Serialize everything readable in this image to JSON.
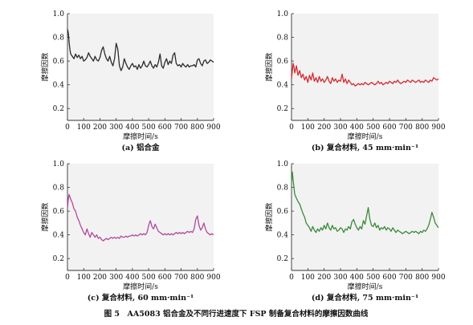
{
  "figure_caption": "图 5　AA5083 铝合金及不同行进速度下 FSP 制备复合材料的摩擦因数曲线",
  "chart_data": [
    {
      "type": "line",
      "panel_caption": "(a) 铝合金",
      "xlabel": "摩擦时间/s",
      "ylabel": "摩擦因数",
      "xlim": [
        0,
        900
      ],
      "ylim": [
        0.1,
        1.0
      ],
      "x_ticks": [
        0,
        100,
        200,
        300,
        400,
        500,
        600,
        700,
        800,
        900
      ],
      "y_ticks": [
        0.2,
        0.4,
        0.6,
        0.8,
        1.0
      ],
      "grid": false,
      "series": [
        {
          "color": "#2b2b2b",
          "x": [
            0,
            5,
            10,
            15,
            20,
            30,
            40,
            50,
            60,
            70,
            80,
            90,
            100,
            110,
            120,
            130,
            140,
            150,
            160,
            170,
            180,
            190,
            200,
            210,
            220,
            230,
            240,
            250,
            260,
            270,
            280,
            290,
            300,
            310,
            320,
            330,
            340,
            350,
            360,
            370,
            380,
            390,
            400,
            410,
            420,
            430,
            440,
            450,
            460,
            470,
            480,
            490,
            500,
            510,
            520,
            530,
            540,
            550,
            560,
            570,
            580,
            590,
            600,
            610,
            620,
            630,
            640,
            650,
            660,
            670,
            680,
            690,
            700,
            710,
            720,
            730,
            740,
            750,
            760,
            770,
            780,
            790,
            800,
            810,
            820,
            830,
            840,
            850,
            860,
            870,
            880,
            890,
            900
          ],
          "y": [
            0.87,
            0.84,
            0.76,
            0.7,
            0.66,
            0.64,
            0.62,
            0.66,
            0.63,
            0.65,
            0.62,
            0.64,
            0.6,
            0.61,
            0.63,
            0.67,
            0.64,
            0.62,
            0.6,
            0.64,
            0.61,
            0.6,
            0.63,
            0.69,
            0.72,
            0.66,
            0.62,
            0.6,
            0.64,
            0.59,
            0.56,
            0.62,
            0.75,
            0.7,
            0.56,
            0.52,
            0.55,
            0.62,
            0.58,
            0.55,
            0.53,
            0.56,
            0.58,
            0.55,
            0.56,
            0.53,
            0.57,
            0.54,
            0.56,
            0.6,
            0.56,
            0.55,
            0.57,
            0.6,
            0.56,
            0.54,
            0.57,
            0.55,
            0.59,
            0.66,
            0.56,
            0.54,
            0.59,
            0.62,
            0.57,
            0.6,
            0.58,
            0.65,
            0.67,
            0.58,
            0.56,
            0.57,
            0.55,
            0.58,
            0.56,
            0.55,
            0.57,
            0.55,
            0.56,
            0.56,
            0.57,
            0.55,
            0.61,
            0.62,
            0.58,
            0.56,
            0.6,
            0.61,
            0.58,
            0.59,
            0.61,
            0.6,
            0.59
          ]
        }
      ]
    },
    {
      "type": "line",
      "panel_caption": "(b) 复合材料, 45 mm·min⁻¹",
      "xlabel": "摩擦时间/s",
      "ylabel": "摩擦因数",
      "xlim": [
        0,
        900
      ],
      "ylim": [
        0.1,
        1.0
      ],
      "x_ticks": [
        0,
        100,
        200,
        300,
        400,
        500,
        600,
        700,
        800,
        900
      ],
      "y_ticks": [
        0.2,
        0.4,
        0.6,
        0.8,
        1.0
      ],
      "grid": false,
      "series": [
        {
          "color": "#d42a33",
          "x": [
            0,
            5,
            10,
            15,
            20,
            30,
            40,
            50,
            60,
            70,
            80,
            90,
            100,
            110,
            120,
            130,
            140,
            150,
            160,
            170,
            180,
            190,
            200,
            210,
            220,
            230,
            240,
            250,
            260,
            270,
            280,
            290,
            300,
            310,
            320,
            330,
            340,
            350,
            360,
            370,
            380,
            390,
            400,
            410,
            420,
            430,
            440,
            450,
            460,
            470,
            480,
            490,
            500,
            510,
            520,
            530,
            540,
            550,
            560,
            570,
            580,
            590,
            600,
            610,
            620,
            630,
            640,
            650,
            660,
            670,
            680,
            690,
            700,
            710,
            720,
            730,
            740,
            750,
            760,
            770,
            780,
            790,
            800,
            810,
            820,
            830,
            840,
            850,
            860,
            870,
            880,
            890,
            900
          ],
          "y": [
            0.45,
            0.52,
            0.58,
            0.55,
            0.5,
            0.56,
            0.48,
            0.52,
            0.46,
            0.49,
            0.44,
            0.47,
            0.42,
            0.48,
            0.44,
            0.5,
            0.43,
            0.46,
            0.42,
            0.47,
            0.43,
            0.45,
            0.42,
            0.44,
            0.47,
            0.43,
            0.41,
            0.46,
            0.43,
            0.45,
            0.42,
            0.44,
            0.43,
            0.49,
            0.42,
            0.45,
            0.41,
            0.44,
            0.42,
            0.4,
            0.41,
            0.39,
            0.4,
            0.41,
            0.4,
            0.41,
            0.4,
            0.42,
            0.41,
            0.4,
            0.41,
            0.42,
            0.41,
            0.4,
            0.41,
            0.43,
            0.41,
            0.42,
            0.4,
            0.41,
            0.42,
            0.41,
            0.43,
            0.42,
            0.41,
            0.43,
            0.42,
            0.44,
            0.42,
            0.41,
            0.42,
            0.43,
            0.42,
            0.44,
            0.43,
            0.42,
            0.44,
            0.43,
            0.42,
            0.43,
            0.44,
            0.42,
            0.43,
            0.42,
            0.44,
            0.43,
            0.42,
            0.44,
            0.43,
            0.46,
            0.45,
            0.44,
            0.45
          ]
        }
      ]
    },
    {
      "type": "line",
      "panel_caption": "(c) 复合材料, 60 mm·min⁻¹",
      "xlabel": "摩擦时间/s",
      "ylabel": "摩擦因数",
      "xlim": [
        0,
        900
      ],
      "ylim": [
        0.1,
        1.0
      ],
      "x_ticks": [
        0,
        100,
        200,
        300,
        400,
        500,
        600,
        700,
        800,
        900
      ],
      "y_ticks": [
        0.2,
        0.4,
        0.6,
        0.8,
        1.0
      ],
      "grid": false,
      "series": [
        {
          "color": "#b04a9c",
          "x": [
            0,
            5,
            10,
            15,
            20,
            30,
            40,
            50,
            60,
            70,
            80,
            90,
            100,
            110,
            120,
            130,
            140,
            150,
            160,
            170,
            180,
            190,
            200,
            210,
            220,
            230,
            240,
            250,
            260,
            270,
            280,
            290,
            300,
            310,
            320,
            330,
            340,
            350,
            360,
            370,
            380,
            390,
            400,
            410,
            420,
            430,
            440,
            450,
            460,
            470,
            480,
            490,
            500,
            510,
            520,
            530,
            540,
            550,
            560,
            570,
            580,
            590,
            600,
            610,
            620,
            630,
            640,
            650,
            660,
            670,
            680,
            690,
            700,
            710,
            720,
            730,
            740,
            750,
            760,
            770,
            780,
            790,
            800,
            810,
            820,
            830,
            840,
            850,
            860,
            870,
            880,
            890,
            900
          ],
          "y": [
            0.62,
            0.7,
            0.74,
            0.72,
            0.7,
            0.67,
            0.62,
            0.6,
            0.55,
            0.52,
            0.48,
            0.45,
            0.42,
            0.4,
            0.45,
            0.41,
            0.38,
            0.42,
            0.4,
            0.38,
            0.4,
            0.37,
            0.38,
            0.36,
            0.35,
            0.36,
            0.37,
            0.36,
            0.37,
            0.38,
            0.37,
            0.38,
            0.37,
            0.38,
            0.37,
            0.39,
            0.38,
            0.38,
            0.39,
            0.38,
            0.39,
            0.39,
            0.4,
            0.39,
            0.4,
            0.39,
            0.4,
            0.41,
            0.4,
            0.41,
            0.4,
            0.42,
            0.48,
            0.52,
            0.47,
            0.45,
            0.49,
            0.46,
            0.43,
            0.42,
            0.41,
            0.4,
            0.41,
            0.4,
            0.41,
            0.4,
            0.41,
            0.4,
            0.41,
            0.42,
            0.41,
            0.42,
            0.41,
            0.42,
            0.41,
            0.42,
            0.43,
            0.42,
            0.43,
            0.42,
            0.45,
            0.53,
            0.56,
            0.48,
            0.44,
            0.46,
            0.5,
            0.45,
            0.42,
            0.41,
            0.4,
            0.41,
            0.4
          ]
        }
      ]
    },
    {
      "type": "line",
      "panel_caption": "(d) 复合材料, 75 mm·min⁻¹",
      "xlabel": "摩擦时间/s",
      "ylabel": "摩擦因数",
      "xlim": [
        0,
        900
      ],
      "ylim": [
        0.1,
        1.0
      ],
      "x_ticks": [
        0,
        100,
        200,
        300,
        400,
        500,
        600,
        700,
        800,
        900
      ],
      "y_ticks": [
        0.2,
        0.4,
        0.6,
        0.8,
        1.0
      ],
      "grid": false,
      "series": [
        {
          "color": "#3a8a3a",
          "x": [
            0,
            5,
            10,
            15,
            20,
            30,
            40,
            50,
            60,
            70,
            80,
            90,
            100,
            110,
            120,
            130,
            140,
            150,
            160,
            170,
            180,
            190,
            200,
            210,
            220,
            230,
            240,
            250,
            260,
            270,
            280,
            290,
            300,
            310,
            320,
            330,
            340,
            350,
            360,
            370,
            380,
            390,
            400,
            410,
            420,
            430,
            440,
            450,
            460,
            470,
            480,
            490,
            500,
            510,
            520,
            530,
            540,
            550,
            560,
            570,
            580,
            590,
            600,
            610,
            620,
            630,
            640,
            650,
            660,
            670,
            680,
            690,
            700,
            710,
            720,
            730,
            740,
            750,
            760,
            770,
            780,
            790,
            800,
            810,
            820,
            830,
            840,
            850,
            860,
            870,
            880,
            890,
            900
          ],
          "y": [
            0.84,
            0.93,
            0.86,
            0.8,
            0.74,
            0.71,
            0.68,
            0.66,
            0.62,
            0.58,
            0.55,
            0.5,
            0.48,
            0.46,
            0.43,
            0.47,
            0.44,
            0.42,
            0.45,
            0.43,
            0.46,
            0.44,
            0.48,
            0.45,
            0.5,
            0.46,
            0.44,
            0.48,
            0.45,
            0.46,
            0.43,
            0.44,
            0.46,
            0.45,
            0.42,
            0.45,
            0.44,
            0.47,
            0.45,
            0.51,
            0.53,
            0.49,
            0.46,
            0.44,
            0.47,
            0.45,
            0.52,
            0.49,
            0.56,
            0.63,
            0.53,
            0.48,
            0.47,
            0.5,
            0.46,
            0.48,
            0.44,
            0.46,
            0.45,
            0.47,
            0.44,
            0.46,
            0.45,
            0.43,
            0.46,
            0.44,
            0.42,
            0.44,
            0.43,
            0.42,
            0.41,
            0.42,
            0.43,
            0.42,
            0.41,
            0.42,
            0.43,
            0.42,
            0.43,
            0.42,
            0.41,
            0.43,
            0.42,
            0.44,
            0.43,
            0.45,
            0.48,
            0.53,
            0.59,
            0.55,
            0.5,
            0.48,
            0.46
          ]
        }
      ]
    }
  ]
}
